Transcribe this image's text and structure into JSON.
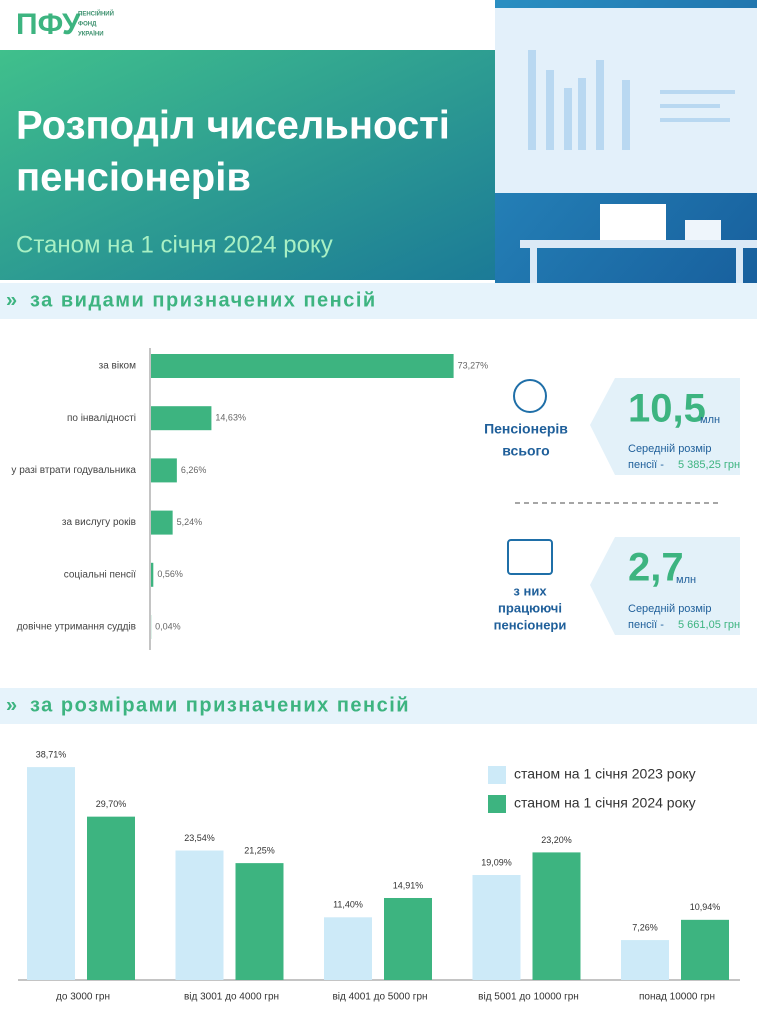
{
  "header": {
    "logo": "ПФУ",
    "logo_caption_lines": [
      "ПЕНСІЙНИЙ",
      "ФОНД",
      "УКРАЇНИ"
    ],
    "title_lines": [
      "Розподіл чисельності",
      "пенсіонерів"
    ],
    "subtitle": "Станом на 1 січня 2024 року"
  },
  "sections": [
    "за видами призначених пенсій",
    "за розмірами призначених пенсій"
  ],
  "stats": [
    {
      "label_lines": [
        "Пенсіонерів",
        "всього"
      ],
      "number": "10,5",
      "unit": "млн",
      "avg_label_lines": [
        "Середній розмір",
        "пенсії -"
      ],
      "avg_value": "5 385,25 грн"
    },
    {
      "label_lines": [
        "з них",
        "працюючі",
        "пенсіонери"
      ],
      "number": "2,7",
      "unit": "млн",
      "avg_label_lines": [
        "Середній розмір",
        "пенсії -"
      ],
      "avg_value": "5 661,05 грн"
    }
  ],
  "chart_data": [
    {
      "type": "hbar",
      "categories": [
        "за віком",
        "по інвалідності",
        "у разі втрати годувальника",
        "за вислугу років",
        "соціальні пенсії",
        "довічне утримання суддів"
      ],
      "values": [
        73.27,
        14.63,
        6.26,
        5.24,
        0.56,
        0.04
      ],
      "value_labels": [
        "73,27%",
        "14,63%",
        "6,26%",
        "5,24%",
        "0,56%",
        "0,04%"
      ],
      "color": "#3db480"
    },
    {
      "type": "bar",
      "categories": [
        "до 3000 грн",
        "від 3001 до 4000 грн",
        "від 4001 до 5000 грн",
        "від 5001 до 10000 грн",
        "понад 10000 грн"
      ],
      "legend": "top-right",
      "series": [
        {
          "name": "станом на 1 січня 2023 року",
          "color": "#cdeaf8",
          "values": [
            38.71,
            23.54,
            11.4,
            19.09,
            7.26
          ],
          "value_labels": [
            "38,71%",
            "23,54%",
            "11,40%",
            "19,09%",
            "7,26%"
          ]
        },
        {
          "name": "станом на 1 січня 2024 року",
          "color": "#3db480",
          "values": [
            29.7,
            21.25,
            14.91,
            23.2,
            10.94
          ],
          "value_labels": [
            "29,70%",
            "21,25%",
            "14,91%",
            "23,20%",
            "10,94%"
          ]
        }
      ]
    }
  ]
}
